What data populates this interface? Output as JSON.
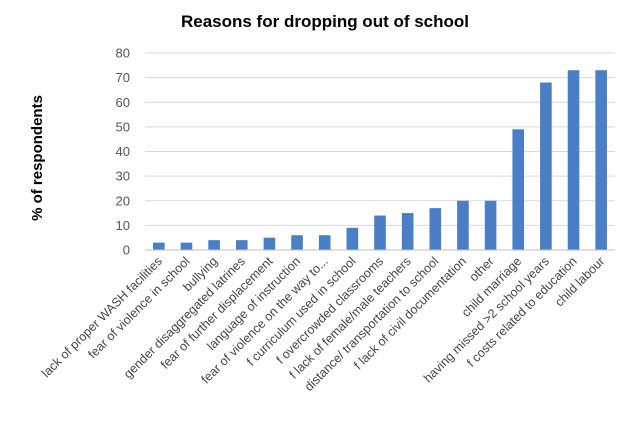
{
  "chart_data": {
    "type": "bar",
    "title": "Reasons for dropping out of school",
    "xlabel": "",
    "ylabel": "% of respondents",
    "ylim": [
      0,
      80
    ],
    "yticks": [
      0,
      10,
      20,
      30,
      40,
      50,
      60,
      70,
      80
    ],
    "grid": true,
    "bar_color": "#4a7fc5",
    "categories": [
      "lack of proper WASH facilities",
      "fear of violence in school",
      "bullying",
      "gender disaggregated latrines",
      "fear of further displacement",
      "language of instruction",
      "fear of violence on the way to...",
      "f curriculum used in school",
      "f overcrowded classrooms",
      "f lack of female/male teachers",
      "distance/ transportation to school",
      "f lack of civil documentation",
      "other",
      "child marriage",
      "having missed >2 school years",
      "f costs related to education",
      "child labour"
    ],
    "values": [
      3,
      3,
      4,
      4,
      5,
      6,
      6,
      9,
      14,
      15,
      17,
      20,
      20,
      49,
      68,
      73,
      73
    ]
  }
}
